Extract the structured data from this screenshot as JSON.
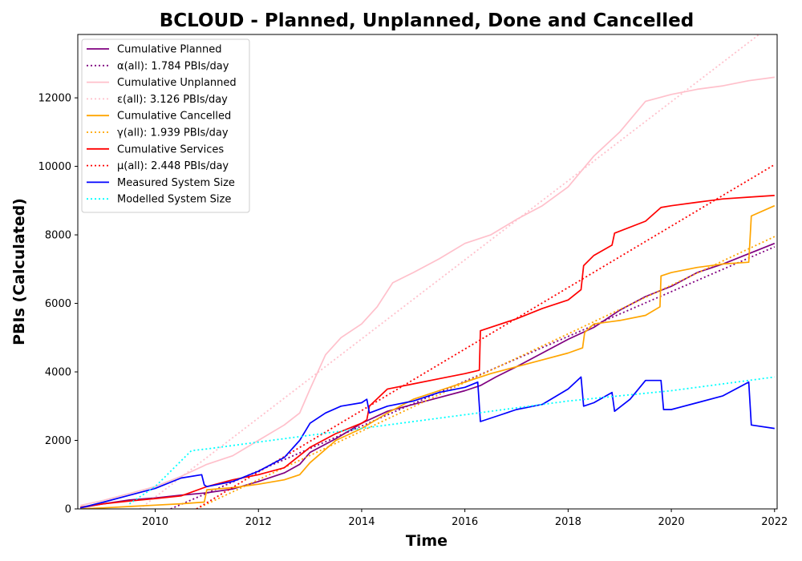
{
  "chart_data": {
    "type": "line",
    "title": "BCLOUD - Planned, Unplanned, Done  and Cancelled",
    "xlabel": "Time",
    "ylabel": "PBIs (Calculated)",
    "xlim": [
      2008.5,
      2022.05
    ],
    "ylim": [
      0,
      13850
    ],
    "x_ticks": [
      "2010",
      "2012",
      "2014",
      "2016",
      "2018",
      "2020",
      "2022"
    ],
    "y_ticks": [
      "0",
      "2000",
      "4000",
      "6000",
      "8000",
      "10000",
      "12000"
    ],
    "grid": false,
    "legend_position": "top-left",
    "series": [
      {
        "name": "Cumulative Planned",
        "color": "#800080",
        "style": "solid",
        "x": [
          2008.55,
          2009.0,
          2009.5,
          2010.0,
          2010.5,
          2011.0,
          2011.5,
          2012.0,
          2012.5,
          2012.8,
          2013.0,
          2013.5,
          2014.0,
          2014.5,
          2015.0,
          2015.5,
          2016.0,
          2016.3,
          2016.6,
          2017.0,
          2017.5,
          2018.0,
          2018.5,
          2019.0,
          2019.5,
          2020.0,
          2020.5,
          2021.0,
          2021.5,
          2022.0
        ],
        "y": [
          30,
          150,
          260,
          320,
          400,
          470,
          580,
          800,
          1050,
          1300,
          1650,
          2050,
          2500,
          2850,
          3050,
          3250,
          3450,
          3600,
          3850,
          4150,
          4550,
          4950,
          5300,
          5800,
          6200,
          6500,
          6900,
          7150,
          7450,
          7750
        ]
      },
      {
        "name": "α(all): 1.784 PBIs/day",
        "color": "#800080",
        "style": "dotted",
        "x": [
          2010.3,
          2022.0
        ],
        "y": [
          0,
          7650
        ]
      },
      {
        "name": "Cumulative Unplanned",
        "color": "#ffc0cb",
        "style": "solid",
        "x": [
          2008.55,
          2009.0,
          2009.5,
          2010.0,
          2010.5,
          2011.0,
          2011.5,
          2012.0,
          2012.5,
          2012.8,
          2013.0,
          2013.3,
          2013.6,
          2014.0,
          2014.3,
          2014.6,
          2015.0,
          2015.5,
          2016.0,
          2016.5,
          2017.0,
          2017.5,
          2018.0,
          2018.5,
          2019.0,
          2019.5,
          2020.0,
          2020.5,
          2021.0,
          2021.5,
          2022.0
        ],
        "y": [
          100,
          250,
          450,
          650,
          950,
          1300,
          1550,
          2000,
          2450,
          2800,
          3500,
          4500,
          5000,
          5400,
          5900,
          6600,
          6900,
          7300,
          7750,
          8000,
          8450,
          8850,
          9400,
          10300,
          11000,
          11900,
          12100,
          12250,
          12350,
          12500,
          12600
        ]
      },
      {
        "name": "ε(all): 3.126 PBIs/day",
        "color": "#ffc0cb",
        "style": "dotted",
        "x": [
          2009.7,
          2021.7
        ],
        "y": [
          0,
          13850
        ]
      },
      {
        "name": "Cumulative Cancelled",
        "color": "#ffa500",
        "style": "solid",
        "x": [
          2008.55,
          2009.0,
          2009.5,
          2010.0,
          2010.5,
          2010.95,
          2011.0,
          2011.5,
          2012.0,
          2012.5,
          2012.8,
          2013.0,
          2013.5,
          2014.0,
          2014.5,
          2015.0,
          2015.5,
          2016.0,
          2016.5,
          2017.0,
          2017.5,
          2018.0,
          2018.28,
          2018.32,
          2018.5,
          2019.0,
          2019.5,
          2019.78,
          2019.8,
          2020.0,
          2020.5,
          2021.0,
          2021.5,
          2021.55,
          2022.0
        ],
        "y": [
          0,
          30,
          70,
          110,
          150,
          200,
          560,
          620,
          720,
          850,
          1000,
          1350,
          2000,
          2350,
          2800,
          3200,
          3450,
          3700,
          3950,
          4150,
          4350,
          4550,
          4700,
          5150,
          5400,
          5500,
          5650,
          5900,
          6800,
          6900,
          7050,
          7150,
          7200,
          8550,
          8850
        ]
      },
      {
        "name": "γ(all): 1.939 PBIs/day",
        "color": "#ffa500",
        "style": "dotted",
        "x": [
          2010.8,
          2022.0
        ],
        "y": [
          0,
          7950
        ]
      },
      {
        "name": "Cumulative Services",
        "color": "#ff0000",
        "style": "solid",
        "x": [
          2008.55,
          2009.0,
          2009.5,
          2010.0,
          2010.5,
          2011.0,
          2011.5,
          2012.0,
          2012.5,
          2013.0,
          2013.5,
          2014.0,
          2014.1,
          2014.15,
          2014.5,
          2015.0,
          2015.5,
          2016.0,
          2016.28,
          2016.3,
          2017.0,
          2017.5,
          2018.0,
          2018.25,
          2018.3,
          2018.5,
          2018.85,
          2018.9,
          2019.5,
          2019.8,
          2020.0,
          2020.5,
          2021.0,
          2021.5,
          2022.0
        ],
        "y": [
          50,
          150,
          230,
          300,
          380,
          650,
          850,
          1000,
          1200,
          1800,
          2200,
          2500,
          2600,
          3000,
          3500,
          3650,
          3800,
          3950,
          4050,
          5200,
          5550,
          5850,
          6100,
          6400,
          7100,
          7400,
          7700,
          8050,
          8400,
          8800,
          8850,
          8950,
          9050,
          9100,
          9150
        ]
      },
      {
        "name": "μ(all): 2.448 PBIs/day",
        "color": "#ff0000",
        "style": "dotted",
        "x": [
          2010.8,
          2022.0
        ],
        "y": [
          0,
          10050
        ]
      },
      {
        "name": "Measured System Size",
        "color": "#0000ff",
        "style": "solid",
        "x": [
          2008.55,
          2009.0,
          2009.5,
          2010.0,
          2010.5,
          2010.9,
          2010.95,
          2011.0,
          2011.5,
          2012.0,
          2012.5,
          2012.8,
          2013.0,
          2013.3,
          2013.6,
          2014.0,
          2014.1,
          2014.15,
          2014.5,
          2015.0,
          2015.5,
          2016.0,
          2016.25,
          2016.3,
          2016.7,
          2017.0,
          2017.5,
          2018.0,
          2018.25,
          2018.3,
          2018.5,
          2018.85,
          2018.9,
          2019.2,
          2019.5,
          2019.8,
          2019.85,
          2020.0,
          2020.5,
          2021.0,
          2021.5,
          2021.55,
          2022.0
        ],
        "y": [
          30,
          200,
          400,
          600,
          900,
          1000,
          700,
          650,
          800,
          1100,
          1500,
          2000,
          2500,
          2800,
          3000,
          3100,
          3200,
          2800,
          3000,
          3150,
          3400,
          3550,
          3700,
          2550,
          2750,
          2900,
          3050,
          3500,
          3850,
          3000,
          3100,
          3400,
          2850,
          3200,
          3750,
          3750,
          2900,
          2900,
          3100,
          3300,
          3700,
          2450,
          2350
        ]
      },
      {
        "name": "Modelled System Size",
        "color": "#00ffff",
        "style": "dotted",
        "x": [
          2009.5,
          2010.0,
          2010.7,
          2011.0,
          2012.0,
          2013.0,
          2014.0,
          2015.0,
          2016.0,
          2017.0,
          2018.0,
          2019.0,
          2020.0,
          2021.0,
          2022.0
        ],
        "y": [
          150,
          650,
          1700,
          1750,
          1950,
          2150,
          2350,
          2550,
          2750,
          2950,
          3150,
          3300,
          3450,
          3650,
          3850
        ]
      }
    ]
  }
}
